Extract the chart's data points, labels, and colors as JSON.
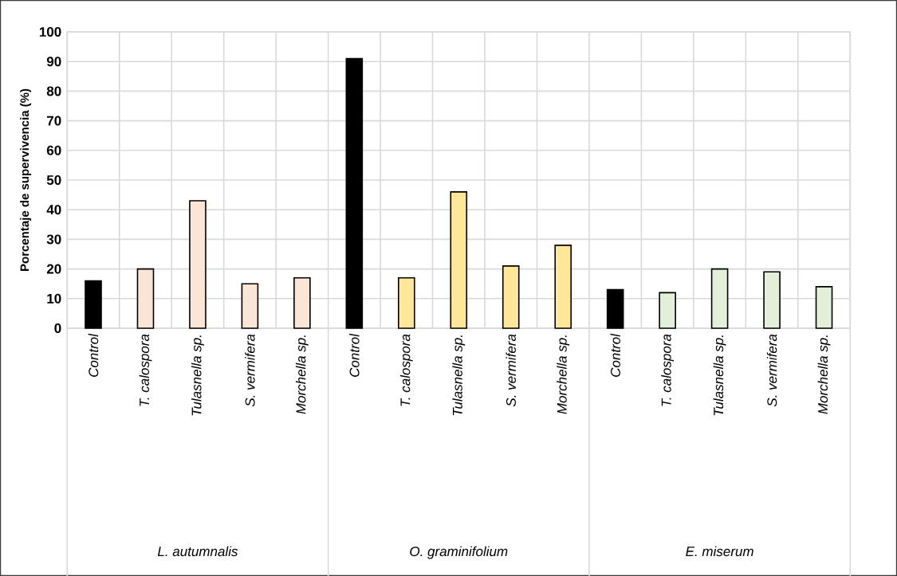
{
  "chart_data": {
    "type": "bar",
    "ylabel": "Porcentaje de supervivencia (%)",
    "categories": [
      "Control",
      "T. calospora",
      "Tulasnella sp.",
      "S. vermifera",
      "Morchella sp.",
      "Control",
      "T. calospora",
      "Tulasnella sp.",
      "S. vermifera",
      "Morchella sp.",
      "Control",
      "T. calospora",
      "Tulasnella sp.",
      "S. vermifera",
      "Morchella sp."
    ],
    "values": [
      16,
      20,
      43,
      15,
      17,
      91,
      17,
      46,
      21,
      28,
      13,
      12,
      20,
      19,
      14
    ],
    "colors": [
      "#000000",
      "#fbe5d6",
      "#fbe5d6",
      "#fbe5d6",
      "#fbe5d6",
      "#000000",
      "#ffe699",
      "#ffe699",
      "#ffe699",
      "#ffe699",
      "#000000",
      "#e2f0d9",
      "#e2f0d9",
      "#e2f0d9",
      "#e2f0d9"
    ],
    "annotations": [
      "L. autumnalis",
      "O. graminifolium",
      "E. miserum"
    ],
    "ylim": [
      0,
      100
    ],
    "yticks": [
      0,
      10,
      20,
      30,
      40,
      50,
      60,
      70,
      80,
      90,
      100
    ],
    "grid": true
  }
}
